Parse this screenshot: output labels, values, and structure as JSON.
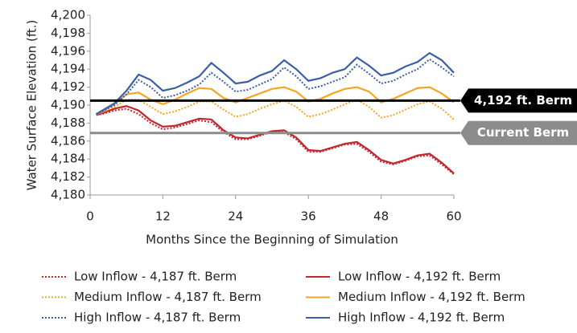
{
  "chart_data": {
    "type": "line",
    "y_label": "Water Surface Elevation (ft.)",
    "x_label": "Months Since the Beginning of Simulation",
    "xlim": [
      0,
      60
    ],
    "xticks": [
      0,
      12,
      24,
      36,
      48,
      60
    ],
    "ylim": [
      4180,
      4200
    ],
    "yticks": [
      {
        "value": 4180,
        "label": "4,180"
      },
      {
        "value": 4182,
        "label": "4,182"
      },
      {
        "value": 4184,
        "label": "4,184"
      },
      {
        "value": 4186,
        "label": "4,186"
      },
      {
        "value": 4188,
        "label": "4,188"
      },
      {
        "value": 4190,
        "label": "4,190"
      },
      {
        "value": 4192,
        "label": "4,192"
      },
      {
        "value": 4194,
        "label": "4,194"
      },
      {
        "value": 4196,
        "label": "4,196"
      },
      {
        "value": 4198,
        "label": "4,198"
      },
      {
        "value": 4200,
        "label": "4,200"
      }
    ],
    "grid": false,
    "reference_lines": [
      {
        "label": "4,192 ft. Berm",
        "value": 4190.5,
        "color": "#000000"
      },
      {
        "label": "Current Berm",
        "value": 4186.9,
        "color": "#8c8c8c"
      }
    ],
    "x": [
      1,
      2,
      4,
      6,
      8,
      10,
      12,
      14,
      16,
      18,
      20,
      22,
      24,
      26,
      28,
      30,
      32,
      34,
      36,
      38,
      40,
      42,
      44,
      46,
      48,
      50,
      52,
      54,
      56,
      58,
      60
    ],
    "series": [
      {
        "name": "Low Inflow - 4,187 ft. Berm",
        "color": "#c1272d",
        "dash": "dotted",
        "values": [
          4188.9,
          4189,
          4189.4,
          4189.6,
          4189.0,
          4188.0,
          4187.3,
          4187.5,
          4187.9,
          4188.3,
          4188.1,
          4187.0,
          4186.2,
          4186.2,
          4186.6,
          4187.0,
          4187.0,
          4186.2,
          4184.8,
          4184.8,
          4185.2,
          4185.6,
          4185.7,
          4184.8,
          4183.7,
          4183.4,
          4183.8,
          4184.3,
          4184.4,
          4183.4,
          4182.3
        ]
      },
      {
        "name": "Low Inflow - 4,192 ft. Berm",
        "color": "#c1272d",
        "dash": "solid",
        "values": [
          4188.9,
          4189.1,
          4189.6,
          4189.9,
          4189.4,
          4188.3,
          4187.6,
          4187.7,
          4188.1,
          4188.5,
          4188.4,
          4187.2,
          4186.4,
          4186.3,
          4186.7,
          4187.1,
          4187.2,
          4186.4,
          4185.0,
          4184.9,
          4185.3,
          4185.7,
          4185.9,
          4185.0,
          4183.9,
          4183.5,
          4183.9,
          4184.4,
          4184.6,
          4183.6,
          4182.4
        ]
      },
      {
        "name": "Medium Inflow - 4,187 ft. Berm",
        "color": "#f5a623",
        "dash": "dotted",
        "values": [
          4189,
          4189.2,
          4189.8,
          4190.6,
          4190.6,
          4189.8,
          4189,
          4189.3,
          4189.8,
          4190.4,
          4190.4,
          4189.5,
          4188.7,
          4189,
          4189.6,
          4190.1,
          4190.5,
          4189.8,
          4188.7,
          4189,
          4189.5,
          4190.1,
          4190.6,
          4189.8,
          4188.6,
          4188.9,
          4189.5,
          4190.1,
          4190.4,
          4189.6,
          4188.4
        ]
      },
      {
        "name": "Medium Inflow - 4,192 ft. Berm",
        "color": "#f5a623",
        "dash": "solid",
        "values": [
          4189,
          4189.3,
          4190.1,
          4191.2,
          4191.4,
          4190.6,
          4190.1,
          4190.6,
          4191.3,
          4191.9,
          4191.8,
          4190.8,
          4190.3,
          4190.8,
          4191.3,
          4191.8,
          4192,
          4191.5,
          4190.4,
          4190.7,
          4191.3,
          4191.8,
          4192,
          4191.5,
          4190.3,
          4190.7,
          4191.3,
          4191.9,
          4192,
          4191.3,
          4190.3
        ]
      },
      {
        "name": "High Inflow - 4,187 ft. Berm",
        "color": "#3a5ea8",
        "dash": "dotted",
        "values": [
          4189,
          4189.3,
          4190,
          4191.2,
          4192.8,
          4192,
          4190.8,
          4191.1,
          4191.6,
          4192.3,
          4193.6,
          4192.6,
          4191.5,
          4191.7,
          4192.3,
          4192.9,
          4194.2,
          4193.2,
          4191.8,
          4192.1,
          4192.6,
          4193.1,
          4194.5,
          4193.5,
          4192.4,
          4192.7,
          4193.4,
          4194,
          4195.1,
          4194.2,
          4193.2
        ]
      },
      {
        "name": "High Inflow - 4,192 ft. Berm",
        "color": "#3a5ea8",
        "dash": "solid",
        "values": [
          4189,
          4189.4,
          4190.2,
          4191.6,
          4193.4,
          4192.8,
          4191.6,
          4191.9,
          4192.5,
          4193.2,
          4194.7,
          4193.6,
          4192.4,
          4192.6,
          4193.3,
          4193.8,
          4195.0,
          4194.0,
          4192.7,
          4193.0,
          4193.6,
          4194.0,
          4195.3,
          4194.4,
          4193.3,
          4193.6,
          4194.3,
          4194.8,
          4195.8,
          4195.0,
          4193.6
        ]
      }
    ]
  }
}
